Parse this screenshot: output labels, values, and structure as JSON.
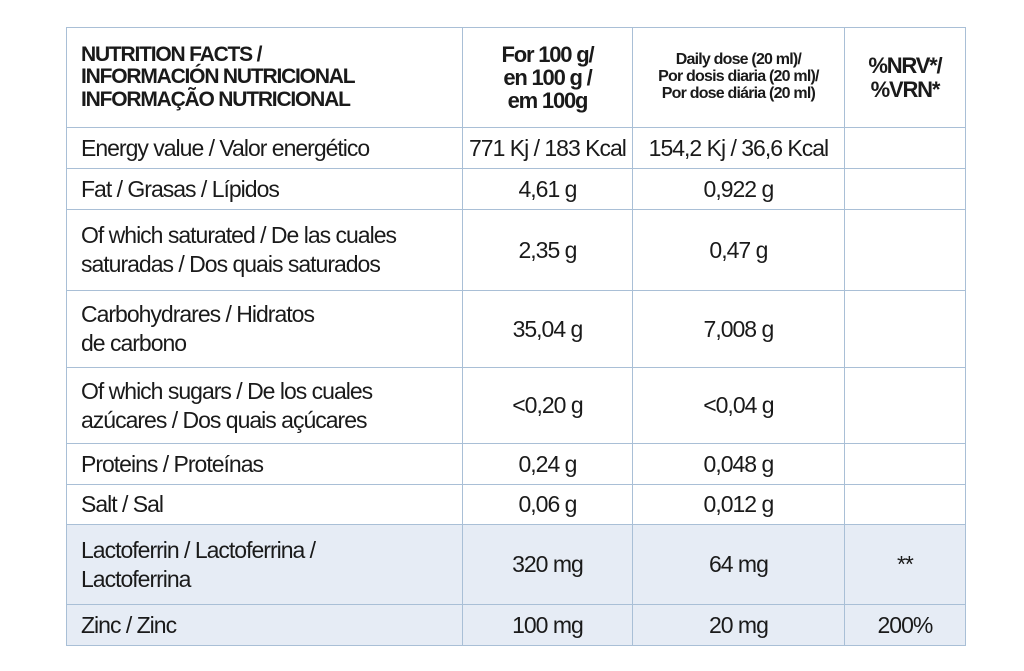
{
  "table": {
    "header": [
      [
        "NUTRITION FACTS /",
        "INFORMACIÓN NUTRICIONAL",
        "INFORMAÇÃO NUTRICIONAL"
      ],
      [
        "For 100 g/",
        "en 100 g /",
        "em 100g"
      ],
      [
        "Daily dose (20 ml)/",
        "Por dosis diaria (20 ml)/",
        "Por dose diária (20 ml)"
      ],
      [
        "%NRV*/",
        "%VRN*"
      ]
    ],
    "rows": [
      {
        "nutrient": [
          "Energy value / Valor energético"
        ],
        "per100g": "771 Kj / 183 Kcal",
        "daily": "154,2 Kj / 36,6 Kcal"
      },
      {
        "nutrient": [
          "Fat / Grasas / Lípidos"
        ],
        "per100g": "4,61 g",
        "daily": "0,922 g"
      },
      {
        "nutrient": [
          "Of which saturated / De las cuales",
          "saturadas / Dos quais saturados"
        ],
        "per100g": "2,35 g",
        "daily": "0,47 g"
      },
      {
        "nutrient": [
          "Carbohydrares / Hidratos",
          "de carbono"
        ],
        "per100g": "35,04 g",
        "daily": "7,008 g"
      },
      {
        "nutrient": [
          "Of which  sugars / De los cuales",
          "azúcares / Dos quais açúcares"
        ],
        "per100g": "<0,20 g",
        "daily": "<0,04 g"
      },
      {
        "nutrient": [
          "Proteins / Proteínas"
        ],
        "per100g": "0,24 g",
        "daily": "0,048 g"
      },
      {
        "nutrient": [
          "Salt / Sal"
        ],
        "per100g": "0,06 g",
        "daily": "0,012 g"
      },
      {
        "nutrient": [
          "Lactoferrin / Lactoferrina /",
          "Lactoferrina"
        ],
        "per100g": "320 mg",
        "daily": "64 mg",
        "nrv": "**"
      },
      {
        "nutrient": [
          "Zinc / Zinc"
        ],
        "per100g": "100 mg",
        "daily": "20 mg",
        "nrv": "200%"
      }
    ]
  }
}
